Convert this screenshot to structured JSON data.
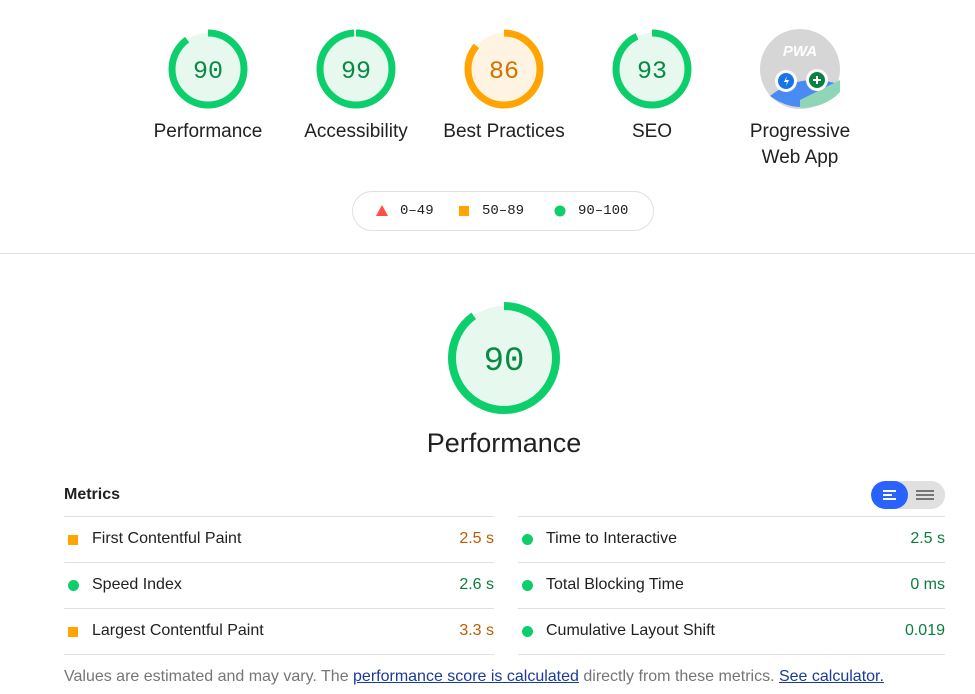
{
  "gauges": [
    {
      "label": "Performance",
      "score": 90,
      "color": "#0cce6b",
      "fill": "#e7f9ef",
      "text_color": "#0a8a46"
    },
    {
      "label": "Accessibility",
      "score": 99,
      "color": "#0cce6b",
      "fill": "#e7f9ef",
      "text_color": "#0a8a46"
    },
    {
      "label": "Best Practices",
      "score": 86,
      "color": "#ffa400",
      "fill": "#fff4e2",
      "text_color": "#d27300"
    },
    {
      "label": "SEO",
      "score": 93,
      "color": "#0cce6b",
      "fill": "#e7f9ef",
      "text_color": "#0a8a46"
    },
    {
      "label": "Progressive Web App",
      "icon_text": "PWA"
    }
  ],
  "legend": [
    {
      "label": "0–49",
      "color": "#ff4e42",
      "marker": "triangle"
    },
    {
      "label": "50–89",
      "color": "#ffa400",
      "marker": "square"
    },
    {
      "label": "90–100",
      "color": "#0cce6b",
      "marker": "circle"
    }
  ],
  "main": {
    "label": "Performance",
    "score": 90,
    "color": "#0cce6b",
    "fill": "#e7f9ef",
    "text_color": "#0a8a46"
  },
  "metrics": {
    "title": "Metrics",
    "items": [
      {
        "label": "First Contentful Paint",
        "value": "2.5 s",
        "color": "#ffa400",
        "marker": "square",
        "value_color": "#c05a00"
      },
      {
        "label": "Speed Index",
        "value": "2.6 s",
        "color": "#0cce6b",
        "marker": "circle",
        "value_color": "#0a7d3e"
      },
      {
        "label": "Largest Contentful Paint",
        "value": "3.3 s",
        "color": "#ffa400",
        "marker": "square",
        "value_color": "#c05a00"
      },
      {
        "label": "Time to Interactive",
        "value": "2.5 s",
        "color": "#0cce6b",
        "marker": "circle",
        "value_color": "#0a7d3e"
      },
      {
        "label": "Total Blocking Time",
        "value": "0 ms",
        "color": "#0cce6b",
        "marker": "circle",
        "value_color": "#0a7d3e"
      },
      {
        "label": "Cumulative Layout Shift",
        "value": "0.019",
        "color": "#0cce6b",
        "marker": "circle",
        "value_color": "#0a7d3e"
      }
    ]
  },
  "footer": {
    "text1": "Values are estimated and may vary. The ",
    "link1": "performance score is calculated",
    "text2": " directly from these metrics. ",
    "link2": "See calculator."
  }
}
